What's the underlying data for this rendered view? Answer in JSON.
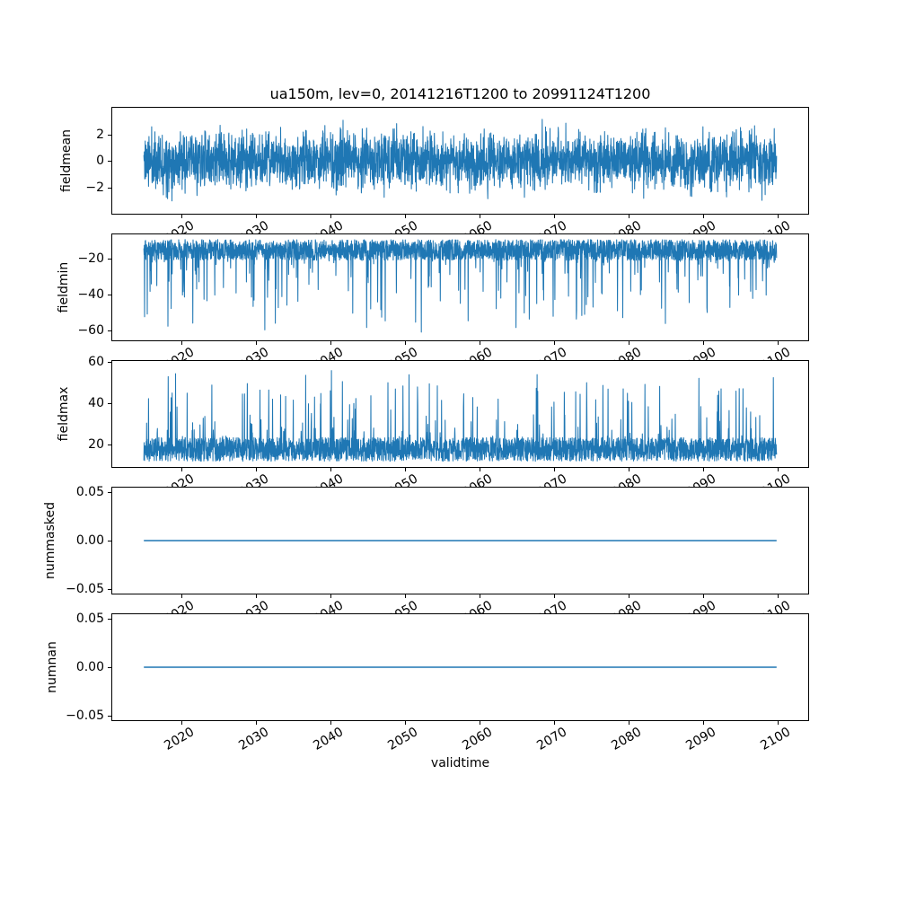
{
  "chart_data": {
    "type": "line",
    "title": "ua150m, lev=0, 20141216T1200 to 20991124T1200",
    "xlabel": "validtime",
    "line_color": "#1f77b4",
    "axes_edge_color": "#000000",
    "background_color": "#ffffff",
    "grid": false,
    "legend": "none",
    "x_axis": {
      "data_start": 2014.96,
      "data_end": 2099.9,
      "xlim": [
        2010.71,
        2104.15
      ],
      "ticks": [
        2020,
        2030,
        2040,
        2050,
        2060,
        2070,
        2080,
        2090,
        2100
      ],
      "tick_labels": [
        "2020",
        "2030",
        "2040",
        "2050",
        "2060",
        "2070",
        "2080",
        "2090",
        "2100"
      ],
      "tick_rotation_deg": 30
    },
    "subplots": [
      {
        "ylabel": "fieldmean",
        "ylim": [
          -4.0,
          4.0
        ],
        "yticks": [
          2,
          0,
          -2
        ],
        "ytick_labels": [
          "2",
          "0",
          "−2"
        ],
        "series": {
          "kind": "noise",
          "n": 3000,
          "mean": 0,
          "std": 0.9,
          "min": -3.6,
          "max": 3.6
        }
      },
      {
        "ylabel": "fieldmin",
        "ylim": [
          -65.4,
          -6.3
        ],
        "yticks": [
          -20,
          -40,
          -60
        ],
        "ytick_labels": [
          "−20",
          "−40",
          "−60"
        ],
        "series": {
          "kind": "noise-spikes-down",
          "n": 3000,
          "band_top": -9.2,
          "band_bottom": -20.7,
          "spike_extreme": -61.5
        }
      },
      {
        "ylabel": "fieldmax",
        "ylim": [
          8.9,
          60.4
        ],
        "yticks": [
          60,
          40,
          20
        ],
        "ytick_labels": [
          "60",
          "40",
          "20"
        ],
        "series": {
          "kind": "noise-spikes-up",
          "n": 3000,
          "band_bottom": 11.7,
          "band_top": 23.2,
          "spike_extreme": 58.2
        }
      },
      {
        "ylabel": "nummasked",
        "ylim": [
          -0.055,
          0.055
        ],
        "yticks": [
          0.05,
          0.0,
          -0.05
        ],
        "ytick_labels": [
          "0.05",
          "0.00",
          "−0.05"
        ],
        "series": {
          "kind": "constant",
          "value": 0
        }
      },
      {
        "ylabel": "numnan",
        "ylim": [
          -0.055,
          0.055
        ],
        "yticks": [
          0.05,
          0.0,
          -0.05
        ],
        "ytick_labels": [
          "0.05",
          "0.00",
          "−0.05"
        ],
        "series": {
          "kind": "constant",
          "value": 0
        }
      }
    ]
  }
}
